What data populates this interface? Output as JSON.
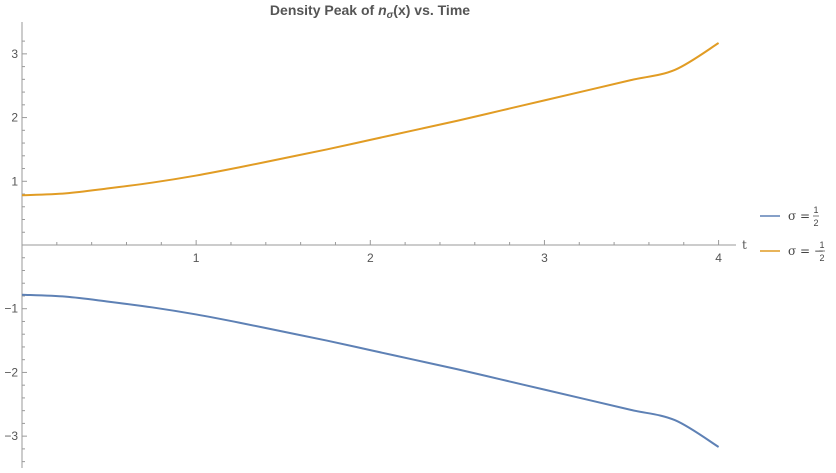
{
  "chart_data": {
    "type": "line",
    "title": {
      "prefix": "Density Peak of ",
      "var": "n",
      "sub": "σ",
      "suffix": "(x) vs. Time"
    },
    "xlabel": "t",
    "ylabel": "",
    "xlim": [
      0,
      4.1
    ],
    "ylim": [
      -3.5,
      3.5
    ],
    "xticks": [
      1,
      2,
      3,
      4
    ],
    "yticks": [
      -3,
      -2,
      -1,
      1,
      2,
      3
    ],
    "xtick_labels": [
      "1",
      "2",
      "3",
      "4"
    ],
    "ytick_labels": [
      "−3",
      "−2",
      "−1",
      "1",
      "2",
      "3"
    ],
    "grid": false,
    "legend_position": "right",
    "series": [
      {
        "name": "σ = 1/2",
        "legend": {
          "lhs": "σ",
          "eq": "=",
          "sign": "",
          "num": "1",
          "den": "2"
        },
        "color": "#5e81b5",
        "x": [
          0,
          0.25,
          0.5,
          0.75,
          1,
          1.25,
          1.5,
          1.75,
          2,
          2.25,
          2.5,
          2.75,
          3,
          3.25,
          3.5,
          3.75,
          4
        ],
        "y": [
          -0.78,
          -0.81,
          -0.89,
          -0.98,
          -1.09,
          -1.22,
          -1.36,
          -1.5,
          -1.65,
          -1.8,
          -1.95,
          -2.11,
          -2.27,
          -2.43,
          -2.59,
          -2.75,
          -3.17
        ]
      },
      {
        "name": "σ = −1/2",
        "legend": {
          "lhs": "σ",
          "eq": "=",
          "sign": "−",
          "num": "1",
          "den": "2"
        },
        "color": "#e19c24",
        "x": [
          0,
          0.25,
          0.5,
          0.75,
          1,
          1.25,
          1.5,
          1.75,
          2,
          2.25,
          2.5,
          2.75,
          3,
          3.25,
          3.5,
          3.75,
          4
        ],
        "y": [
          0.78,
          0.81,
          0.89,
          0.98,
          1.09,
          1.22,
          1.36,
          1.5,
          1.65,
          1.8,
          1.95,
          2.11,
          2.27,
          2.43,
          2.59,
          2.75,
          3.17
        ]
      }
    ]
  }
}
